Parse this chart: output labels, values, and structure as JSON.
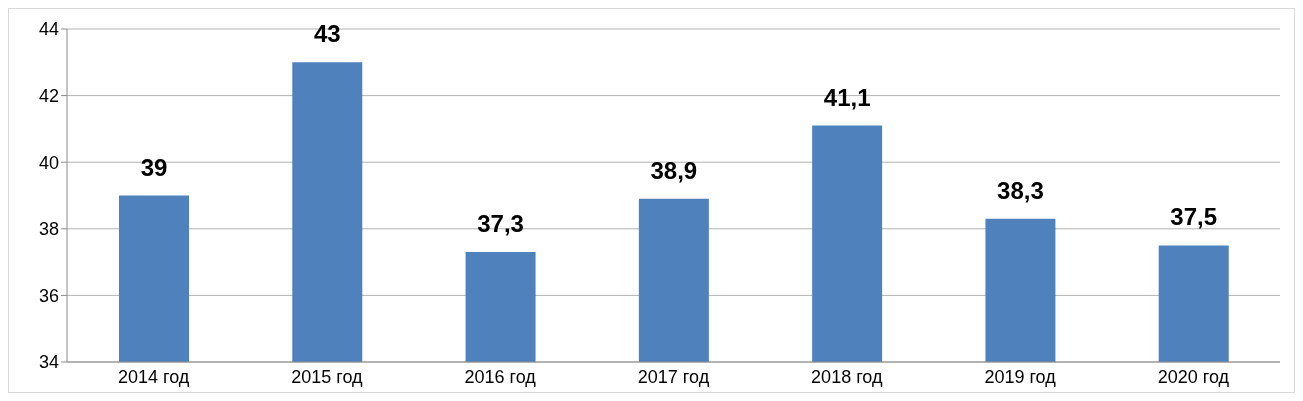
{
  "chart_data": {
    "type": "bar",
    "categories": [
      "2014 год",
      "2015 год",
      "2016 год",
      "2017 год",
      "2018 год",
      "2019 год",
      "2020 год"
    ],
    "values": [
      39,
      43,
      37.3,
      38.9,
      41.1,
      38.3,
      37.5
    ],
    "value_labels": [
      "39",
      "43",
      "37,3",
      "38,9",
      "41,1",
      "38,3",
      "37,5"
    ],
    "color": "#4f81bd",
    "ylim": [
      34,
      44
    ],
    "yticks": [
      34,
      36,
      38,
      40,
      42,
      44
    ],
    "grid": "y"
  }
}
